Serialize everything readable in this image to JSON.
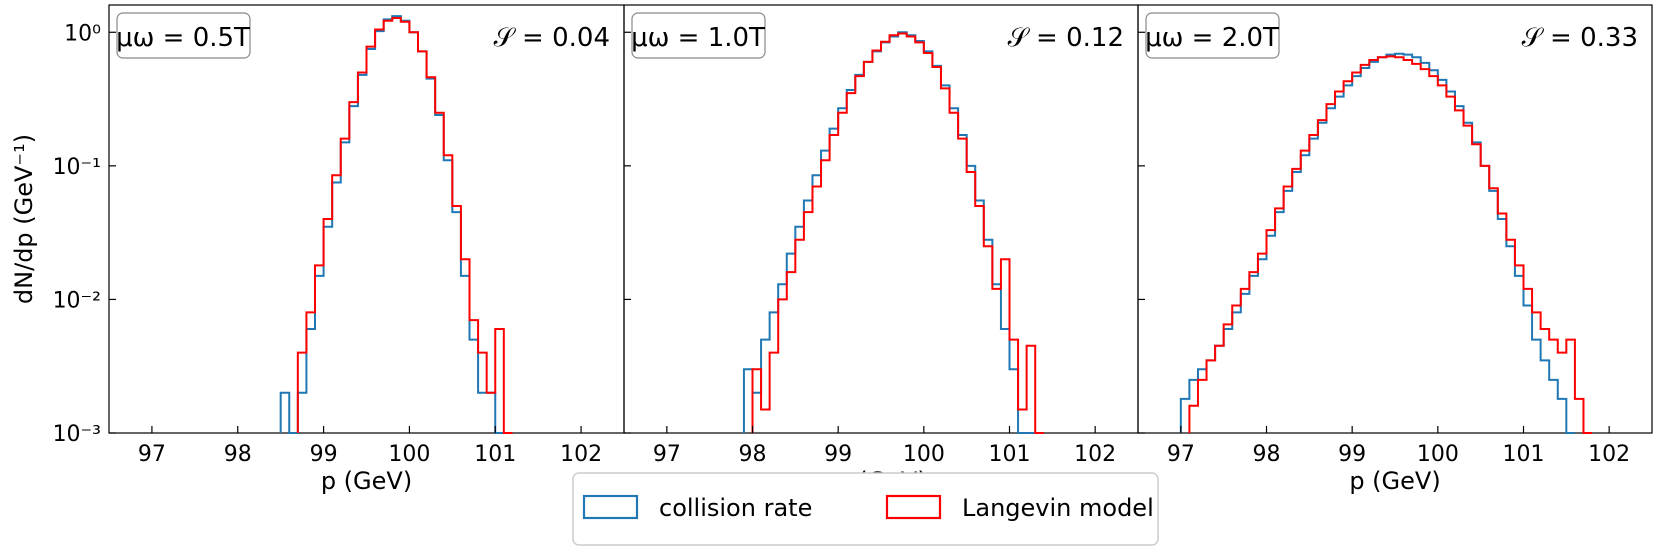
{
  "chart_data": [
    {
      "type": "step-histogram",
      "panel": 1,
      "mu_label": "μω = 0.5T",
      "s_label": "𝒮 = 0.04",
      "xlabel": "p (GeV)",
      "ylabel": "dN/dp (GeV⁻¹)",
      "xlim": [
        96.5,
        102.5
      ],
      "ylim": [
        0.001,
        1.6
      ],
      "yscale": "log",
      "xticks": [
        97,
        98,
        99,
        100,
        101,
        102
      ],
      "yticks": [
        {
          "v": 0.001,
          "label": "10⁻³"
        },
        {
          "v": 0.01,
          "label": "10⁻²"
        },
        {
          "v": 0.1,
          "label": "10⁻¹"
        },
        {
          "v": 1,
          "label": "10⁰"
        }
      ],
      "series": [
        {
          "name": "collision rate",
          "color": "#1f77b4",
          "x": [
            98.5,
            98.6,
            98.7,
            98.8,
            98.9,
            99.0,
            99.1,
            99.2,
            99.3,
            99.4,
            99.5,
            99.6,
            99.7,
            99.8,
            99.9,
            100.0,
            100.1,
            100.2,
            100.3,
            100.4,
            100.5,
            100.6,
            100.7,
            100.8,
            100.9,
            101.0
          ],
          "y": [
            0.002,
            0,
            0.002,
            0.006,
            0.015,
            0.035,
            0.075,
            0.15,
            0.28,
            0.48,
            0.75,
            1.02,
            1.25,
            1.32,
            1.22,
            1.0,
            0.72,
            0.45,
            0.24,
            0.11,
            0.045,
            0.015,
            0.005,
            0.002,
            0.002,
            0
          ]
        },
        {
          "name": "Langevin model",
          "color": "#ff0000",
          "x": [
            98.7,
            98.8,
            98.9,
            99.0,
            99.1,
            99.2,
            99.3,
            99.4,
            99.5,
            99.6,
            99.7,
            99.8,
            99.9,
            100.0,
            100.1,
            100.2,
            100.3,
            100.4,
            100.5,
            100.6,
            100.7,
            100.8,
            100.9,
            101.0,
            101.1
          ],
          "y": [
            0.004,
            0.008,
            0.018,
            0.04,
            0.085,
            0.16,
            0.3,
            0.5,
            0.78,
            1.05,
            1.22,
            1.28,
            1.2,
            1.0,
            0.72,
            0.46,
            0.25,
            0.12,
            0.05,
            0.02,
            0.007,
            0.004,
            0.002,
            0.006,
            0
          ]
        }
      ]
    },
    {
      "type": "step-histogram",
      "panel": 2,
      "mu_label": "μω = 1.0T",
      "s_label": "𝒮 = 0.12",
      "xlabel": "p (GeV)",
      "ylabel": "",
      "xlim": [
        96.5,
        102.5
      ],
      "ylim": [
        0.001,
        1.6
      ],
      "yscale": "log",
      "xticks": [
        97,
        98,
        99,
        100,
        101,
        102
      ],
      "series": [
        {
          "name": "collision rate",
          "color": "#1f77b4",
          "x": [
            97.9,
            98.0,
            98.1,
            98.2,
            98.3,
            98.4,
            98.5,
            98.6,
            98.7,
            98.8,
            98.9,
            99.0,
            99.1,
            99.2,
            99.3,
            99.4,
            99.5,
            99.6,
            99.7,
            99.8,
            99.9,
            100.0,
            100.1,
            100.2,
            100.3,
            100.4,
            100.5,
            100.6,
            100.7,
            100.8,
            100.9,
            101.0,
            101.1,
            101.2
          ],
          "y": [
            0.003,
            0.002,
            0.005,
            0.008,
            0.013,
            0.022,
            0.035,
            0.055,
            0.085,
            0.13,
            0.19,
            0.27,
            0.37,
            0.48,
            0.6,
            0.72,
            0.84,
            0.93,
            1.0,
            0.95,
            0.86,
            0.72,
            0.56,
            0.4,
            0.27,
            0.17,
            0.1,
            0.055,
            0.028,
            0.013,
            0.006,
            0.003,
            0.001,
            0
          ]
        },
        {
          "name": "Langevin model",
          "color": "#ff0000",
          "x": [
            98.0,
            98.1,
            98.2,
            98.3,
            98.4,
            98.5,
            98.6,
            98.7,
            98.8,
            98.9,
            99.0,
            99.1,
            99.2,
            99.3,
            99.4,
            99.5,
            99.6,
            99.7,
            99.8,
            99.9,
            100.0,
            100.1,
            100.2,
            100.3,
            100.4,
            100.5,
            100.6,
            100.7,
            100.8,
            100.9,
            101.0,
            101.1,
            101.2,
            101.3
          ],
          "y": [
            0.003,
            0.0015,
            0.004,
            0.01,
            0.016,
            0.028,
            0.045,
            0.07,
            0.11,
            0.17,
            0.25,
            0.35,
            0.47,
            0.6,
            0.73,
            0.85,
            0.95,
            0.98,
            0.93,
            0.84,
            0.7,
            0.55,
            0.38,
            0.25,
            0.16,
            0.09,
            0.05,
            0.025,
            0.012,
            0.02,
            0.005,
            0.0015,
            0.0045,
            0
          ]
        }
      ]
    },
    {
      "type": "step-histogram",
      "panel": 3,
      "mu_label": "μω = 2.0T",
      "s_label": "𝒮 = 0.33",
      "xlabel": "p (GeV)",
      "ylabel": "",
      "xlim": [
        96.5,
        102.5
      ],
      "ylim": [
        0.001,
        1.6
      ],
      "yscale": "log",
      "xticks": [
        97,
        98,
        99,
        100,
        101,
        102
      ],
      "series": [
        {
          "name": "collision rate",
          "color": "#1f77b4",
          "x": [
            97.0,
            97.1,
            97.2,
            97.3,
            97.4,
            97.5,
            97.6,
            97.7,
            97.8,
            97.9,
            98.0,
            98.1,
            98.2,
            98.3,
            98.4,
            98.5,
            98.6,
            98.7,
            98.8,
            98.9,
            99.0,
            99.1,
            99.2,
            99.3,
            99.4,
            99.5,
            99.6,
            99.7,
            99.8,
            99.9,
            100.0,
            100.1,
            100.2,
            100.3,
            100.4,
            100.5,
            100.6,
            100.7,
            100.8,
            100.9,
            101.0,
            101.1,
            101.2,
            101.3,
            101.4,
            101.5
          ],
          "y": [
            0.0018,
            0.0025,
            0.003,
            0.0035,
            0.0045,
            0.006,
            0.008,
            0.011,
            0.015,
            0.02,
            0.03,
            0.045,
            0.065,
            0.09,
            0.12,
            0.16,
            0.21,
            0.27,
            0.33,
            0.4,
            0.47,
            0.54,
            0.6,
            0.65,
            0.68,
            0.69,
            0.68,
            0.65,
            0.59,
            0.52,
            0.44,
            0.36,
            0.28,
            0.21,
            0.15,
            0.1,
            0.065,
            0.04,
            0.025,
            0.015,
            0.009,
            0.005,
            0.0035,
            0.0025,
            0.0018,
            0
          ]
        },
        {
          "name": "Langevin model",
          "color": "#ff0000",
          "x": [
            97.1,
            97.2,
            97.3,
            97.4,
            97.5,
            97.6,
            97.7,
            97.8,
            97.9,
            98.0,
            98.1,
            98.2,
            98.3,
            98.4,
            98.5,
            98.6,
            98.7,
            98.8,
            98.9,
            99.0,
            99.1,
            99.2,
            99.3,
            99.4,
            99.5,
            99.6,
            99.7,
            99.8,
            99.9,
            100.0,
            100.1,
            100.2,
            100.3,
            100.4,
            100.5,
            100.6,
            100.7,
            100.8,
            100.9,
            101.0,
            101.1,
            101.2,
            101.3,
            101.4,
            101.5,
            101.6,
            101.7
          ],
          "y": [
            0.0016,
            0.0025,
            0.0035,
            0.0045,
            0.0065,
            0.009,
            0.012,
            0.016,
            0.022,
            0.033,
            0.048,
            0.07,
            0.095,
            0.13,
            0.17,
            0.22,
            0.29,
            0.36,
            0.43,
            0.5,
            0.57,
            0.62,
            0.65,
            0.66,
            0.65,
            0.62,
            0.58,
            0.53,
            0.47,
            0.4,
            0.33,
            0.26,
            0.2,
            0.145,
            0.1,
            0.068,
            0.044,
            0.028,
            0.018,
            0.012,
            0.008,
            0.006,
            0.005,
            0.004,
            0.005,
            0.0018,
            0
          ]
        }
      ]
    }
  ],
  "legend": {
    "items": [
      {
        "label": "collision rate",
        "color": "#1f77b4"
      },
      {
        "label": "Langevin model",
        "color": "#ff0000"
      }
    ]
  }
}
